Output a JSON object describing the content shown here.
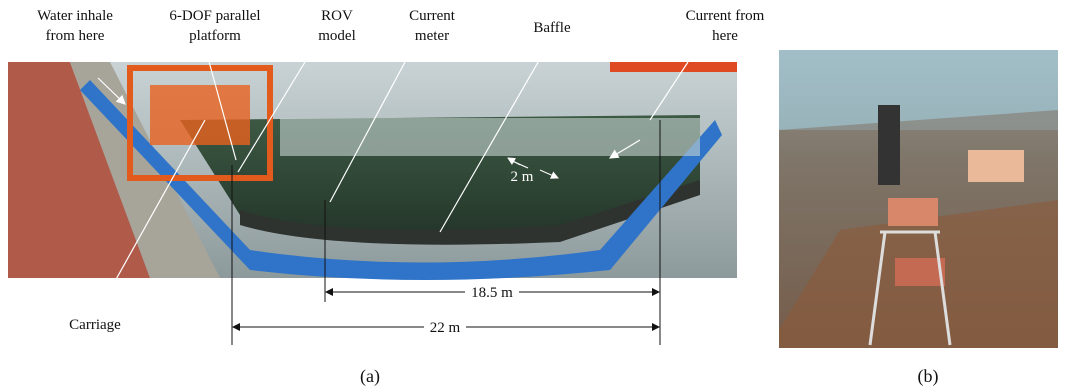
{
  "annotations": [
    {
      "lines": [
        "Water inhale",
        "from here"
      ]
    },
    {
      "lines": [
        "6-DOF parallel",
        "platform"
      ]
    },
    {
      "lines": [
        "ROV",
        "model"
      ]
    },
    {
      "lines": [
        "Current",
        "meter"
      ]
    },
    {
      "lines": [
        "Baffle"
      ]
    },
    {
      "lines": [
        "Current from",
        "here"
      ]
    },
    {
      "lines": [
        "Carriage"
      ]
    }
  ],
  "dimensions": [
    "2 m",
    "18.5 m",
    "22 m"
  ],
  "panels": [
    "(a)",
    "(b)"
  ]
}
